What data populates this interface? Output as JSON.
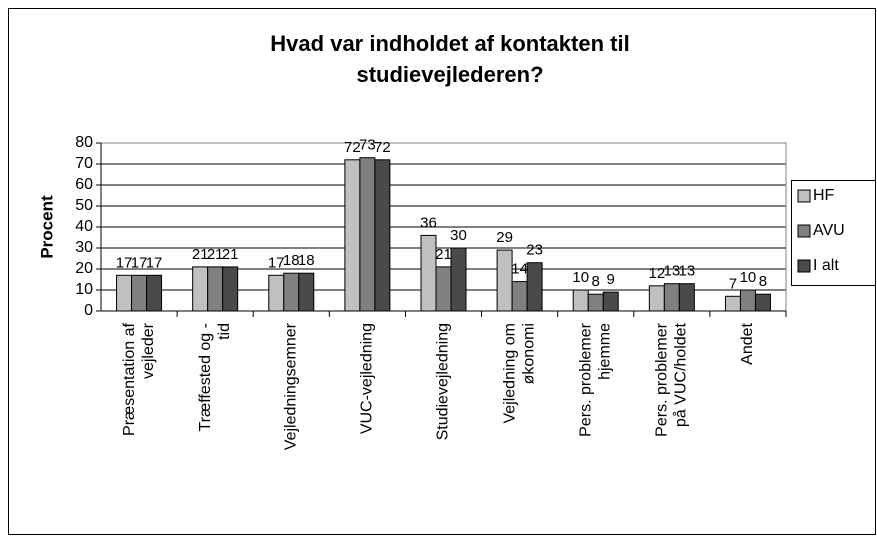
{
  "chart_data": {
    "type": "bar",
    "title": [
      "Hvad var indholdet af kontakten til",
      "studievejlederen?"
    ],
    "y_label": "Procent",
    "categories": [
      [
        "Præsentation af",
        "vejleder"
      ],
      [
        "Træffested og -",
        "tid"
      ],
      [
        "Vejledningsemner"
      ],
      [
        "VUC-vejledning"
      ],
      [
        "Studievejledning"
      ],
      [
        "Vejledning om",
        "økonomi"
      ],
      [
        "Pers. problemer",
        "hjemme"
      ],
      [
        "Pers. problemer",
        "på VUC/holdet"
      ],
      [
        "Andet"
      ]
    ],
    "series": [
      {
        "name": "HF",
        "color": "#c0c0c0",
        "values": [
          17,
          21,
          17,
          72,
          36,
          29,
          10,
          12,
          7
        ]
      },
      {
        "name": "AVU",
        "color": "#808080",
        "values": [
          17,
          21,
          18,
          73,
          21,
          14,
          8,
          13,
          10
        ]
      },
      {
        "name": "I alt",
        "color": "#4a4a4a",
        "values": [
          17,
          21,
          18,
          72,
          30,
          23,
          9,
          13,
          8
        ]
      }
    ],
    "ylim": [
      0,
      80
    ],
    "yticks": [
      0,
      10,
      20,
      30,
      40,
      50,
      60,
      70,
      80
    ],
    "grid": true,
    "legend": "right"
  }
}
